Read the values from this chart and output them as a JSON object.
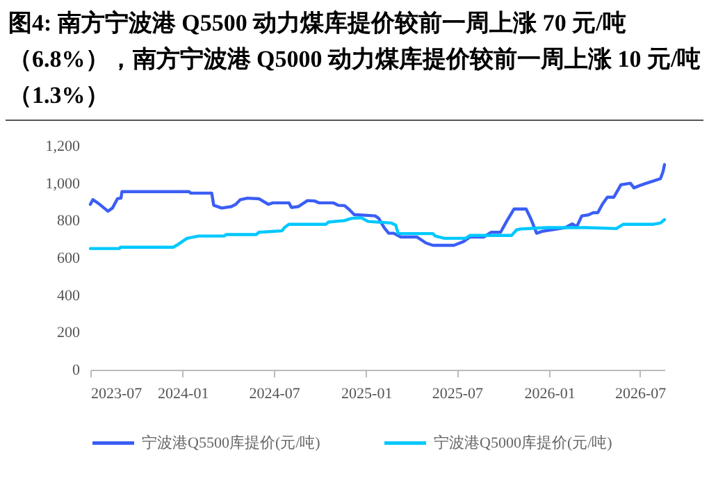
{
  "chart_data": {
    "type": "line",
    "title": "图4:  南方宁波港 Q5500 动力煤库提价较前一周上涨 70 元/吨（6.8%），南方宁波港  Q5000  动力煤库提价较前一周上涨 10 元/吨（1.3%）",
    "xlim": [
      "2023-07-01",
      "2026-08-19"
    ],
    "xticks": [
      "2023-07",
      "2024-01",
      "2024-07",
      "2025-01",
      "2025-07",
      "2026-01",
      "2026-07"
    ],
    "ylim": [
      0,
      1200
    ],
    "yticks": [
      0,
      200,
      400,
      600,
      800,
      {
        "value": 1000,
        "label": "1,000"
      },
      {
        "value": 1200,
        "label": "1,200"
      }
    ],
    "grid": false,
    "legend": "bottom",
    "line_style": "solid",
    "marker": "none",
    "series": [
      {
        "name": "宁波港Q5500库提价(元/吨)",
        "color": "#3b5ef5",
        "x": [
          "2023-07-01",
          "2023-07-06",
          "2023-07-17",
          "2023-08-05",
          "2023-08-14",
          "2023-08-24",
          "2023-08-31",
          "2023-09-02",
          "2024-01-14",
          "2024-01-17",
          "2024-02-28",
          "2024-03-03",
          "2024-03-19",
          "2024-04-07",
          "2024-04-16",
          "2024-04-25",
          "2024-05-09",
          "2024-06-01",
          "2024-06-20",
          "2024-06-29",
          "2024-07-31",
          "2024-08-05",
          "2024-08-19",
          "2024-09-06",
          "2024-09-20",
          "2024-09-29",
          "2024-10-27",
          "2024-11-06",
          "2024-11-19",
          "2024-11-29",
          "2024-12-08",
          "2025-01-19",
          "2025-01-26",
          "2025-02-06",
          "2025-02-15",
          "2025-02-25",
          "2025-03-11",
          "2025-04-12",
          "2025-04-30",
          "2025-05-14",
          "2025-06-25",
          "2025-07-14",
          "2025-07-27",
          "2025-08-24",
          "2025-09-07",
          "2025-09-26",
          "2025-10-09",
          "2025-10-23",
          "2025-11-16",
          "2025-11-25",
          "2025-12-07",
          "2025-12-18",
          "2026-01-05",
          "2026-02-02",
          "2026-02-16",
          "2026-02-25",
          "2026-03-07",
          "2026-03-20",
          "2026-03-30",
          "2026-04-08",
          "2026-04-17",
          "2026-04-27",
          "2026-05-10",
          "2026-05-24",
          "2026-06-12",
          "2026-06-19",
          "2026-06-30",
          "2026-07-14",
          "2026-07-28",
          "2026-08-11",
          "2026-08-16",
          "2026-08-19"
        ],
        "values": [
          887,
          912,
          892,
          850,
          867,
          917,
          920,
          955,
          955,
          947,
          947,
          882,
          867,
          875,
          887,
          912,
          920,
          917,
          887,
          895,
          895,
          870,
          875,
          907,
          905,
          895,
          895,
          882,
          880,
          857,
          832,
          825,
          812,
          762,
          732,
          732,
          712,
          712,
          680,
          667,
          667,
          687,
          712,
          712,
          737,
          737,
          800,
          862,
          862,
          812,
          732,
          742,
          750,
          762,
          782,
          767,
          825,
          830,
          842,
          842,
          887,
          925,
          925,
          992,
          1000,
          975,
          987,
          1000,
          1012,
          1025,
          1062,
          1100
        ]
      },
      {
        "name": "宁波港Q5000库提价(元/吨)",
        "color": "#00c8ff",
        "x": [
          "2023-07-01",
          "2023-08-28",
          "2023-08-30",
          "2023-12-13",
          "2023-12-22",
          "2023-12-31",
          "2024-01-10",
          "2024-02-02",
          "2024-03-24",
          "2024-03-28",
          "2024-05-27",
          "2024-06-01",
          "2024-07-17",
          "2024-07-22",
          "2024-07-31",
          "2024-10-13",
          "2024-10-18",
          "2024-11-19",
          "2024-12-03",
          "2024-12-22",
          "2025-01-05",
          "2025-02-20",
          "2025-03-01",
          "2025-03-06",
          "2025-05-14",
          "2025-05-19",
          "2025-06-06",
          "2025-07-18",
          "2025-07-27",
          "2025-10-18",
          "2025-10-28",
          "2025-11-06",
          "2025-12-27",
          "2026-03-16",
          "2026-05-15",
          "2026-05-29",
          "2026-07-28",
          "2026-08-11",
          "2026-08-19"
        ],
        "values": [
          650,
          650,
          657,
          657,
          670,
          687,
          705,
          717,
          717,
          725,
          725,
          737,
          745,
          762,
          780,
          780,
          792,
          800,
          812,
          815,
          795,
          787,
          775,
          730,
          730,
          717,
          705,
          705,
          720,
          720,
          750,
          755,
          762,
          762,
          757,
          780,
          780,
          787,
          805
        ]
      }
    ]
  }
}
